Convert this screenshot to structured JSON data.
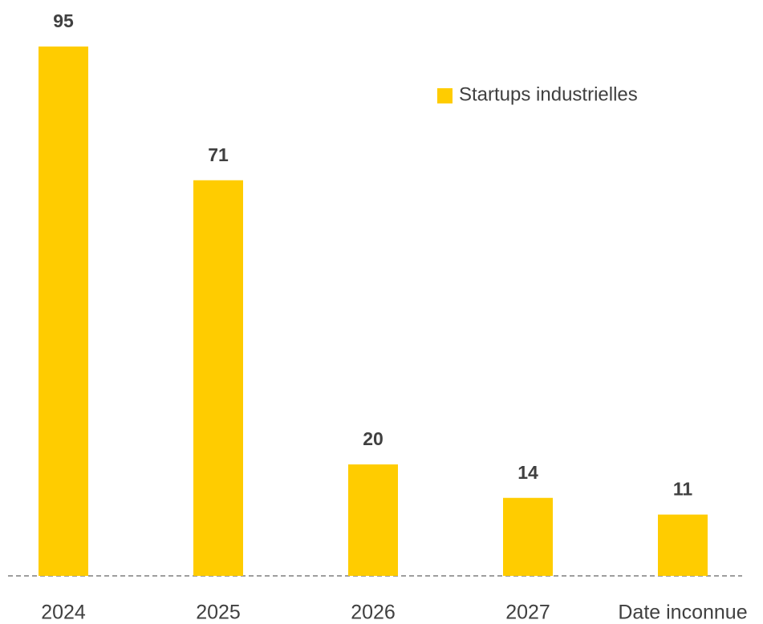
{
  "chart_data": {
    "type": "bar",
    "categories": [
      "2024",
      "2025",
      "2026",
      "2027",
      "Date inconnue"
    ],
    "series": [
      {
        "name": "Startups industrielles",
        "color": "#FFCC00",
        "values": [
          95,
          71,
          20,
          14,
          11
        ]
      }
    ],
    "legend": "top-right",
    "grid": false
  }
}
